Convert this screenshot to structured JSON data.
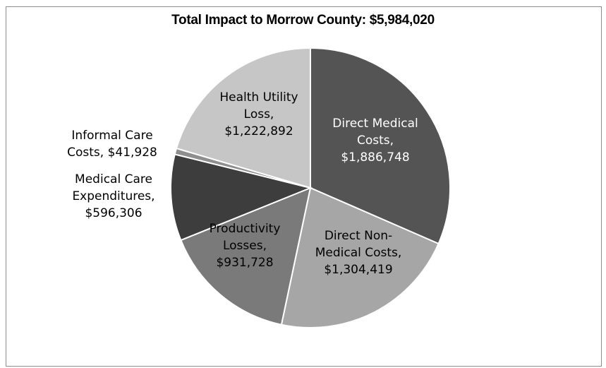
{
  "chart_data": {
    "type": "pie",
    "title": "Total Impact to Morrow County: $5,984,020",
    "slices": [
      {
        "label": [
          "Direct Medical",
          "Costs,",
          "$1,886,748"
        ],
        "value": 1886748,
        "color": "#545454",
        "text_color": "#ffffff"
      },
      {
        "label": [
          "Direct Non-",
          "Medical Costs,",
          "$1,304,419"
        ],
        "value": 1304419,
        "color": "#a6a6a6",
        "text_color": "#000000"
      },
      {
        "label": [
          "Productivity",
          "Losses,",
          "$931,728"
        ],
        "value": 931728,
        "color": "#7a7a7a",
        "text_color": "#000000"
      },
      {
        "label": [
          "Medical Care",
          "Expenditures,",
          "$596,306"
        ],
        "value": 596306,
        "color": "#3d3d3d",
        "text_color": "#000000"
      },
      {
        "label": [
          "Informal Care",
          "Costs, $41,928"
        ],
        "value": 41928,
        "color": "#8e8e8e",
        "text_color": "#000000"
      },
      {
        "label": [
          "Health Utility",
          "Loss,",
          "$1,222,892"
        ],
        "value": 1222892,
        "color": "#c6c6c6",
        "text_color": "#000000"
      }
    ],
    "legend": "none"
  }
}
